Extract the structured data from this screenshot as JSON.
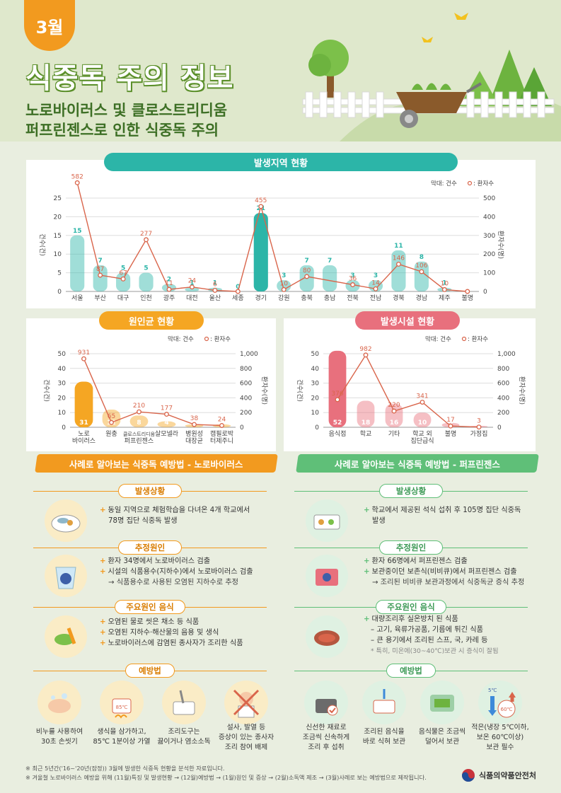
{
  "header": {
    "month": "3월",
    "title": "식중독 주의 정보",
    "subtitle_line1": "노로바이러스 및 클로스트리디움",
    "subtitle_line2": "퍼프린젠스로 인한 식중독 주의"
  },
  "legend": {
    "bars": "막대: 건수",
    "line": "○ : 환자수"
  },
  "axis": {
    "left": "건수(건)",
    "right": "환자수(명)"
  },
  "colors": {
    "teal": "#2cb5a8",
    "orange": "#f5a623",
    "pink": "#e8707d",
    "line": "#d9654b"
  },
  "charts": {
    "region": {
      "title": "발생지역 현황"
    },
    "pathogen": {
      "title": "원인균 현황"
    },
    "facility": {
      "title": "발생시설 현황"
    }
  },
  "chart_data": [
    {
      "type": "bar",
      "title": "발생지역 현황",
      "categories": [
        "서울",
        "부산",
        "대구",
        "인천",
        "광주",
        "대전",
        "울산",
        "세종",
        "경기",
        "강원",
        "충북",
        "충남",
        "전북",
        "전남",
        "경북",
        "경남",
        "제주",
        "불명"
      ],
      "series": [
        {
          "name": "건수",
          "axis": "left",
          "values": [
            15,
            7,
            5,
            5,
            2,
            1,
            1,
            0,
            21,
            3,
            7,
            7,
            3,
            3,
            11,
            8,
            1,
            0
          ],
          "labels": [
            "15",
            "7",
            "5",
            "5",
            "2",
            "1",
            "1",
            "0",
            "21",
            "3",
            "7",
            "7",
            "3",
            "3",
            "11",
            "8",
            "1",
            ""
          ]
        },
        {
          "name": "환자수",
          "type": "line",
          "axis": "right",
          "values": [
            582,
            87,
            67,
            277,
            11,
            24,
            6,
            0,
            455,
            10,
            80,
            null,
            36,
            14,
            146,
            106,
            10,
            0
          ],
          "labels": [
            "582",
            "87",
            "67",
            "277",
            "11",
            "24",
            "6",
            "",
            "455",
            "10",
            "80",
            "",
            "36",
            "14",
            "146",
            "106",
            "10",
            ""
          ]
        }
      ],
      "ylim_left": [
        0,
        25
      ],
      "yticks_left": [
        "0",
        "5",
        "10",
        "15",
        "20",
        "25"
      ],
      "ylim_right": [
        0,
        500
      ],
      "yticks_right": [
        "0",
        "100",
        "200",
        "300",
        "400",
        "500"
      ]
    },
    {
      "type": "bar",
      "title": "원인균 현황",
      "categories": [
        "노로\n바이러스",
        "원충",
        "클로스트리디움\n퍼프린젠스",
        "살모넬라",
        "병원성\n대장균",
        "캠필로박\n터제주니"
      ],
      "series": [
        {
          "name": "건수",
          "axis": "left",
          "values": [
            31,
            12,
            8,
            4,
            2,
            2
          ],
          "labels": [
            "31",
            "12",
            "8",
            "4",
            "2",
            "2"
          ]
        },
        {
          "name": "환자수",
          "type": "line",
          "axis": "right",
          "values": [
            931,
            65,
            210,
            177,
            38,
            24
          ],
          "labels": [
            "931",
            "65",
            "210",
            "177",
            "38",
            "24"
          ]
        }
      ],
      "ylim_left": [
        0,
        50
      ],
      "yticks_left": [
        "0",
        "10",
        "20",
        "30",
        "40",
        "50"
      ],
      "ylim_right": [
        0,
        1000
      ],
      "yticks_right": [
        "0",
        "200",
        "400",
        "600",
        "800",
        "1,000"
      ]
    },
    {
      "type": "bar",
      "title": "발생시설 현황",
      "categories": [
        "음식점",
        "학교",
        "기타",
        "학교 외\n집단급식",
        "불명",
        "가정집"
      ],
      "series": [
        {
          "name": "건수",
          "axis": "left",
          "values": [
            52,
            18,
            16,
            10,
            3,
            1
          ],
          "labels": [
            "52",
            "18",
            "16",
            "10",
            "3",
            "1"
          ]
        },
        {
          "name": "환자수",
          "type": "line",
          "axis": "right",
          "values": [
            376,
            982,
            220,
            341,
            17,
            3
          ],
          "labels": [
            "376",
            "982",
            "220",
            "341",
            "17",
            "3"
          ]
        }
      ],
      "ylim_left": [
        0,
        50
      ],
      "yticks_left": [
        "0",
        "10",
        "20",
        "30",
        "40",
        "50"
      ],
      "ylim_right": [
        0,
        1000
      ],
      "yticks_right": [
        "0",
        "200",
        "400",
        "600",
        "800",
        "1,000"
      ]
    }
  ],
  "norovirus": {
    "head": "사례로 알아보는 식중독 예방법 - 노로바이러스",
    "s1": "발생상황",
    "s1_items": [
      "동일 지역으로 체험학습을 다녀온 4개 학교에서",
      "78명 집단 식중독 발생"
    ],
    "s2": "추정원인",
    "s2_items": [
      "환자 34명에서 노로바이러스 검출",
      "시설의 식품용수(지하수)에서 노로바이러스 검출",
      "→ 식품용수로 사용된 오염된 지하수로 추정"
    ],
    "s3": "주요원인 음식",
    "s3_items": [
      "오염된 물로 씻은 채소 등 식품",
      "오염된 지하수·해산물의 음용 및 생식",
      "노로바이러스에 감염된 종사자가 조리한 식품"
    ],
    "s4": "예방법",
    "tips": [
      {
        "l1": "비누를 사용하여",
        "l2": "30초 손씻기",
        "l3": ""
      },
      {
        "l1": "생식을 삼가하고,",
        "l2": "85℃ 1분이상 가열",
        "l3": ""
      },
      {
        "l1": "조리도구는",
        "l2": "끓이거나 염소소독",
        "l3": ""
      },
      {
        "l1": "설사, 발열 등",
        "l2": "증상이 있는 종사자",
        "l3": "조리 참여 배제"
      }
    ],
    "temp_label": "85℃"
  },
  "perfringens": {
    "head": "사례로 알아보는 식중독 예방법 - 퍼프린젠스",
    "s1": "발생상황",
    "s1_items": [
      "학교에서 제공된 석식 섭취 후 105명 집단 식중독",
      "발생"
    ],
    "s2": "추정원인",
    "s2_items": [
      "환자 66명에서 퍼프린젠스 검출",
      "보관중이던 보존식(비비큐)에서 퍼프린젠스 검출",
      "→ 조리된 비비큐 보관과정에서 식중독균 증식 추정"
    ],
    "s3": "주요원인 음식",
    "s3_items": [
      "대량조리후 실온방치 된 식품",
      "– 고기, 육류가공품, 기름에 튀긴 식품",
      "– 큰 용기에서 조리된 스프, 국, 카레 등",
      "* 특히, 미온에(30~40℃)보관 시 증식이 잘됨"
    ],
    "s4": "예방법",
    "tips": [
      {
        "l1": "신선한 재료로",
        "l2": "조금씩 신속하게",
        "l3": "조리 후 섭취"
      },
      {
        "l1": "조리된 음식을",
        "l2": "바로 식혀 보관",
        "l3": ""
      },
      {
        "l1": "음식물은 조금씩",
        "l2": "덜어서 보관",
        "l3": ""
      },
      {
        "l1": "적은(냉장 5℃이하,",
        "l2": "보온 60℃이상)",
        "l3": "보관 필수"
      }
    ],
    "temp_cold": "5℃",
    "temp_hot": "60℃"
  },
  "footnotes": {
    "f1": "※ 최근 5년간('16~'20년(잠정)) 3월에 발생한 식중독 현황을 분석한 자료입니다.",
    "f2": "※ 겨울철 노로바이러스 예방을 위해 (11월)특징 및 발생현황 → (12월)예방법 → (1월)원인 및 증상 → (2월)소독액 제조 → (3월)사례로 보는 예방법으로 제작됩니다."
  },
  "logo": {
    "text": "식품의약품안전처"
  }
}
